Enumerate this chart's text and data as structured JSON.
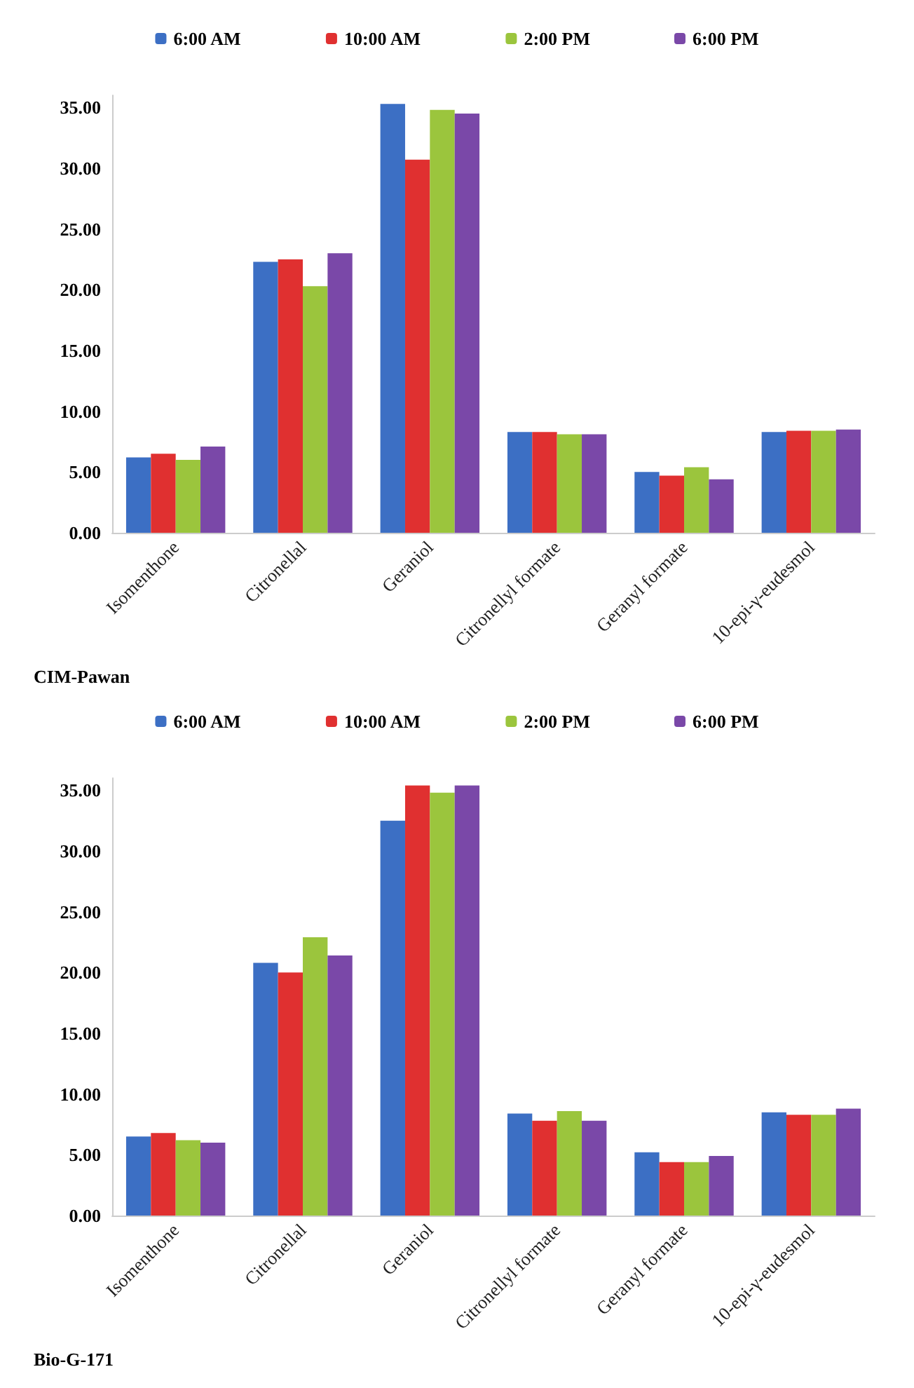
{
  "chart_data": [
    {
      "type": "bar",
      "categories": [
        "Isomenthone",
        "Citronellal",
        "Geraniol",
        "Citronellyl formate",
        "Geranyl formate",
        "10-epi-γ-eudesmol"
      ],
      "series": [
        {
          "name": "6:00 AM",
          "color": "#3c6fc4",
          "values": [
            6.2,
            22.3,
            35.3,
            8.3,
            5.0,
            8.3
          ]
        },
        {
          "name": "10:00 AM",
          "color": "#e03030",
          "values": [
            6.5,
            22.5,
            30.7,
            8.3,
            4.7,
            8.4
          ]
        },
        {
          "name": "2:00 PM",
          "color": "#9bc53d",
          "values": [
            6.0,
            20.3,
            34.8,
            8.1,
            5.4,
            8.4
          ]
        },
        {
          "name": "6:00 PM",
          "color": "#7a48a8",
          "values": [
            7.1,
            23.0,
            34.5,
            8.1,
            4.4,
            8.5
          ]
        }
      ],
      "ylim": [
        0,
        36
      ],
      "yticks": [
        {
          "value": 0,
          "label": "0.00"
        },
        {
          "value": 5,
          "label": "5.00"
        },
        {
          "value": 10,
          "label": "10.00"
        },
        {
          "value": 15,
          "label": "15.00"
        },
        {
          "value": 20,
          "label": "20.00"
        },
        {
          "value": 25,
          "label": "25.00"
        },
        {
          "value": 30,
          "label": "30.00"
        },
        {
          "value": 35,
          "label": "35.00"
        }
      ],
      "grid": false,
      "legend": "top",
      "annotations": [
        "CIM-Pawan"
      ]
    },
    {
      "type": "bar",
      "categories": [
        "Isomenthone",
        "Citronellal",
        "Geraniol",
        "Citronellyl formate",
        "Geranyl formate",
        "10-epi-γ-eudesmol"
      ],
      "series": [
        {
          "name": "6:00 AM",
          "color": "#3c6fc4",
          "values": [
            6.5,
            20.8,
            32.5,
            8.4,
            5.2,
            8.5
          ]
        },
        {
          "name": "10:00 AM",
          "color": "#e03030",
          "values": [
            6.8,
            20.0,
            35.4,
            7.8,
            4.4,
            8.3
          ]
        },
        {
          "name": "2:00 PM",
          "color": "#9bc53d",
          "values": [
            6.2,
            22.9,
            34.8,
            8.6,
            4.4,
            8.3
          ]
        },
        {
          "name": "6:00 PM",
          "color": "#7a48a8",
          "values": [
            6.0,
            21.4,
            35.4,
            7.8,
            4.9,
            8.8
          ]
        }
      ],
      "ylim": [
        0,
        36
      ],
      "yticks": [
        {
          "value": 0,
          "label": "0.00"
        },
        {
          "value": 5,
          "label": "5.00"
        },
        {
          "value": 10,
          "label": "10.00"
        },
        {
          "value": 15,
          "label": "15.00"
        },
        {
          "value": 20,
          "label": "20.00"
        },
        {
          "value": 25,
          "label": "25.00"
        },
        {
          "value": 30,
          "label": "30.00"
        },
        {
          "value": 35,
          "label": "35.00"
        }
      ],
      "grid": false,
      "legend": "top",
      "annotations": [
        "Bio-G-171"
      ]
    }
  ]
}
